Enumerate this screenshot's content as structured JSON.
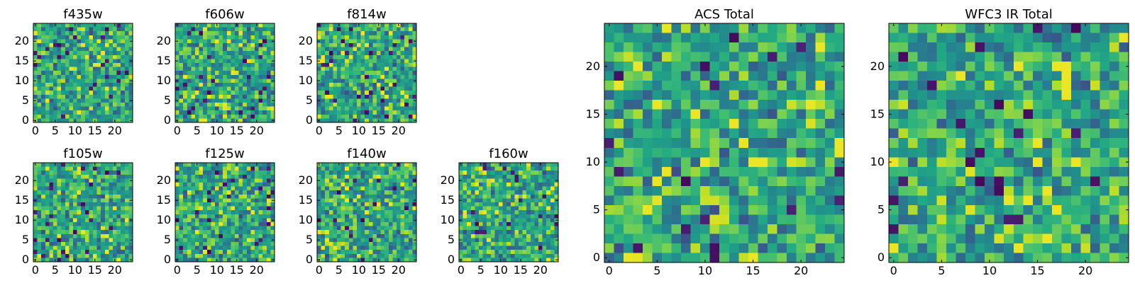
{
  "figure": {
    "colormap": "viridis",
    "background": "#ffffff"
  },
  "chart_data": [
    {
      "type": "heatmap",
      "title": "f435w",
      "xticks": [
        "0",
        "5",
        "10",
        "15",
        "20"
      ],
      "yticks": [
        "0",
        "5",
        "10",
        "15",
        "20"
      ],
      "xlim": [
        -0.5,
        24.5
      ],
      "ylim": [
        -0.5,
        24.5
      ],
      "grid_size": [
        25,
        25
      ],
      "pattern": "noise",
      "seed": 11
    },
    {
      "type": "heatmap",
      "title": "f606w",
      "xticks": [
        "0",
        "5",
        "10",
        "15",
        "20"
      ],
      "yticks": [
        "0",
        "5",
        "10",
        "15",
        "20"
      ],
      "xlim": [
        -0.5,
        24.5
      ],
      "ylim": [
        -0.5,
        24.5
      ],
      "grid_size": [
        25,
        25
      ],
      "pattern": "noise",
      "seed": 23
    },
    {
      "type": "heatmap",
      "title": "f814w",
      "xticks": [
        "0",
        "5",
        "10",
        "15",
        "20"
      ],
      "yticks": [
        "0",
        "5",
        "10",
        "15",
        "20"
      ],
      "xlim": [
        -0.5,
        24.5
      ],
      "ylim": [
        -0.5,
        24.5
      ],
      "grid_size": [
        25,
        25
      ],
      "pattern": "noise",
      "seed": 37
    },
    {
      "type": "heatmap",
      "title": "f105w",
      "xticks": [
        "0",
        "5",
        "10",
        "15",
        "20"
      ],
      "yticks": [
        "0",
        "5",
        "10",
        "15",
        "20"
      ],
      "xlim": [
        -0.5,
        24.5
      ],
      "ylim": [
        -0.5,
        24.5
      ],
      "grid_size": [
        25,
        25
      ],
      "pattern": "noise",
      "seed": 41
    },
    {
      "type": "heatmap",
      "title": "f125w",
      "xticks": [
        "0",
        "5",
        "10",
        "15",
        "20"
      ],
      "yticks": [
        "0",
        "5",
        "10",
        "15",
        "20"
      ],
      "xlim": [
        -0.5,
        24.5
      ],
      "ylim": [
        -0.5,
        24.5
      ],
      "grid_size": [
        25,
        25
      ],
      "pattern": "noise",
      "seed": 53
    },
    {
      "type": "heatmap",
      "title": "f140w",
      "xticks": [
        "0",
        "5",
        "10",
        "15",
        "20"
      ],
      "yticks": [
        "0",
        "5",
        "10",
        "15",
        "20"
      ],
      "xlim": [
        -0.5,
        24.5
      ],
      "ylim": [
        -0.5,
        24.5
      ],
      "grid_size": [
        25,
        25
      ],
      "pattern": "noise",
      "seed": 67
    },
    {
      "type": "heatmap",
      "title": "f160w",
      "xticks": [
        "0",
        "5",
        "10",
        "15",
        "20"
      ],
      "yticks": [
        "0",
        "5",
        "10",
        "15",
        "20"
      ],
      "xlim": [
        -0.5,
        24.5
      ],
      "ylim": [
        -0.5,
        24.5
      ],
      "grid_size": [
        25,
        25
      ],
      "pattern": "noise",
      "seed": 79
    },
    {
      "type": "heatmap",
      "title": "ACS Total",
      "xticks": [
        "0",
        "5",
        "10",
        "15",
        "20"
      ],
      "yticks": [
        "0",
        "5",
        "10",
        "15",
        "20"
      ],
      "xlim": [
        -0.5,
        24.5
      ],
      "ylim": [
        -0.5,
        24.5
      ],
      "grid_size": [
        25,
        25
      ],
      "pattern": "noise",
      "seed": 97
    },
    {
      "type": "heatmap",
      "title": "WFC3 IR Total",
      "xticks": [
        "0",
        "5",
        "10",
        "15",
        "20"
      ],
      "yticks": [
        "0",
        "5",
        "10",
        "15",
        "20"
      ],
      "xlim": [
        -0.5,
        24.5
      ],
      "ylim": [
        -0.5,
        24.5
      ],
      "grid_size": [
        25,
        25
      ],
      "pattern": "noise",
      "seed": 113
    }
  ]
}
